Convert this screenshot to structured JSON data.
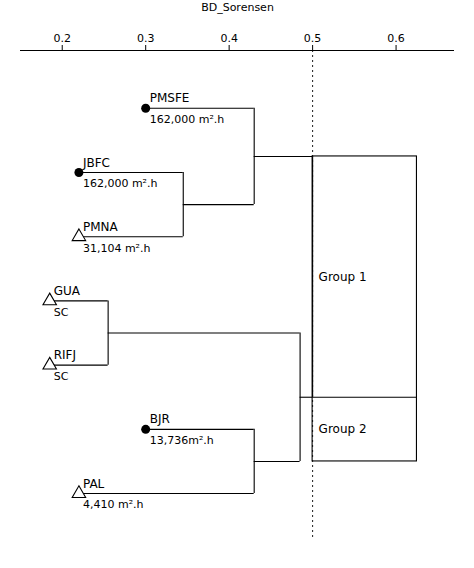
{
  "chart_data": {
    "type": "dendrogram",
    "xlabel": "BD_Sorensen",
    "xlim": [
      0.15,
      0.67
    ],
    "xticks": [
      0.2,
      0.3,
      0.4,
      0.5,
      0.6
    ],
    "reference_x": 0.5,
    "box_x": [
      0.5,
      0.625
    ],
    "tree": {
      "x": 0.5,
      "children": [
        {
          "x": 0.43,
          "group": "Group 1",
          "children": [
            {
              "name": "PMSFE",
              "label": "162,000 m².h",
              "marker": "circle",
              "x": 0.3
            },
            {
              "x": 0.345,
              "children": [
                {
                  "name": "JBFC",
                  "label": "162,000 m².h",
                  "marker": "circle",
                  "x": 0.22
                },
                {
                  "name": "PMNA",
                  "label": "31,104 m².h",
                  "marker": "triangle",
                  "x": 0.22
                }
              ]
            }
          ]
        },
        {
          "x": 0.485,
          "group": "Group 2",
          "children": [
            {
              "x": 0.255,
              "children": [
                {
                  "name": "GUA",
                  "label": "SC",
                  "marker": "triangle",
                  "x": 0.185
                },
                {
                  "name": "RIFJ",
                  "label": "SC",
                  "marker": "triangle",
                  "x": 0.185
                }
              ]
            },
            {
              "x": 0.43,
              "children": [
                {
                  "name": "BJR",
                  "label": "13,736m².h",
                  "marker": "circle",
                  "x": 0.3
                },
                {
                  "name": "PAL",
                  "label": "4,410 m².h",
                  "marker": "triangle",
                  "x": 0.22
                }
              ]
            }
          ]
        }
      ]
    }
  }
}
